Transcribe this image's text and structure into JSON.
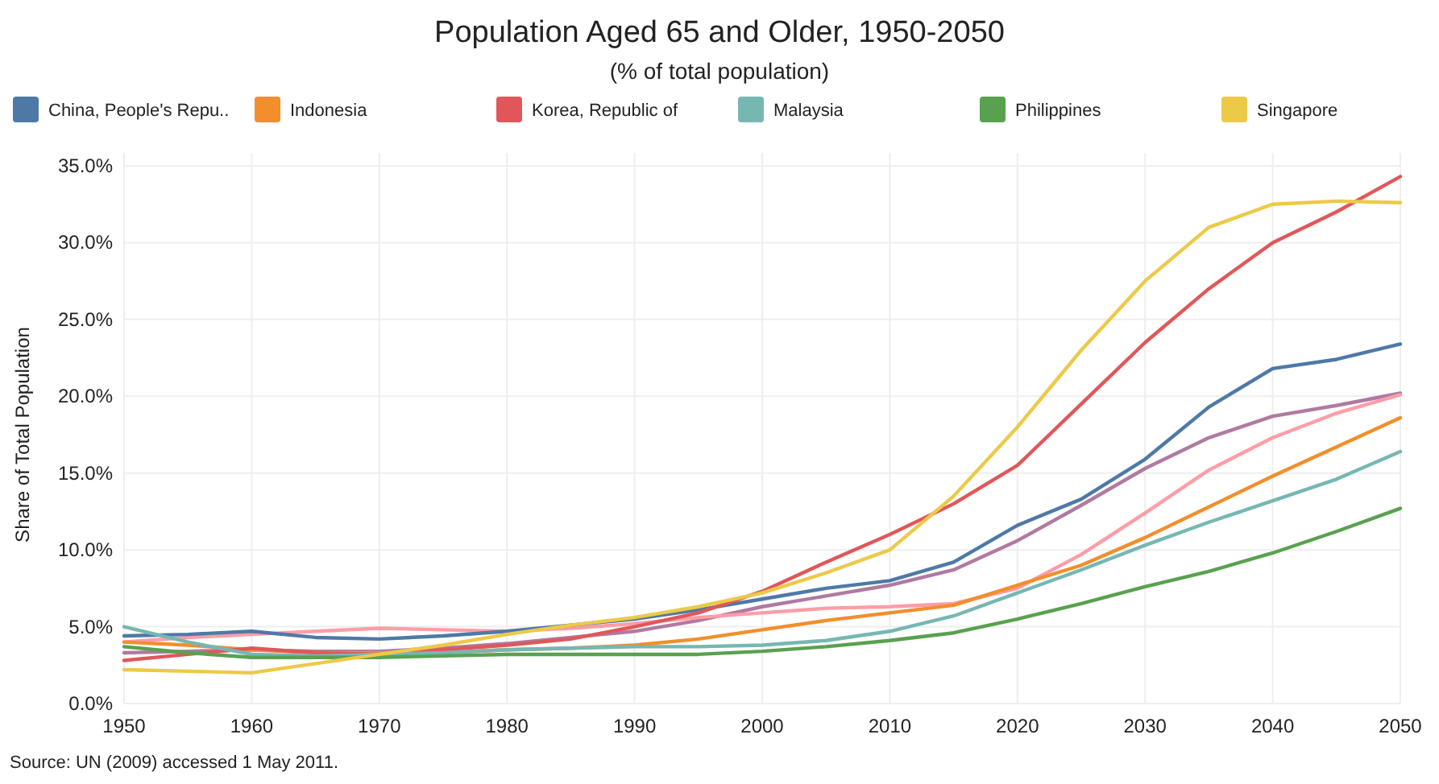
{
  "chart_data": {
    "type": "line",
    "title": "Population Aged 65 and Older, 1950-2050",
    "subtitle": "(% of total population)",
    "ylabel": "Share of Total Population",
    "annotations": [
      "Source: UN (2009) accessed 1 May 2011."
    ],
    "x": [
      1950,
      1955,
      1960,
      1965,
      1970,
      1975,
      1980,
      1985,
      1990,
      1995,
      2000,
      2005,
      2010,
      2015,
      2020,
      2025,
      2030,
      2035,
      2040,
      2045,
      2050
    ],
    "xlim": [
      1950,
      2050
    ],
    "xticks": [
      1950,
      1960,
      1970,
      1980,
      1990,
      2000,
      2010,
      2020,
      2030,
      2040,
      2050
    ],
    "ylim": [
      0,
      35
    ],
    "yticks": [
      {
        "value": 0,
        "label": "0.0%"
      },
      {
        "value": 5,
        "label": "5.0%"
      },
      {
        "value": 10,
        "label": "10.0%"
      },
      {
        "value": 15,
        "label": "15.0%"
      },
      {
        "value": 20,
        "label": "20.0%"
      },
      {
        "value": 25,
        "label": "25.0%"
      },
      {
        "value": 30,
        "label": "30.0%"
      },
      {
        "value": 35,
        "label": "35.0%"
      }
    ],
    "grid": true,
    "legend": "top",
    "marker": "none",
    "line_style": "solid",
    "series": [
      {
        "color": "#b07aa1",
        "values": [
          3.3,
          3.4,
          3.5,
          3.4,
          3.4,
          3.6,
          3.9,
          4.3,
          4.7,
          5.4,
          6.3,
          7.0,
          7.7,
          8.7,
          10.6,
          12.9,
          15.3,
          17.3,
          18.7,
          19.4,
          20.2
        ]
      },
      {
        "color": "#ff9da7",
        "values": [
          4.0,
          4.3,
          4.5,
          4.7,
          4.9,
          4.8,
          4.7,
          4.9,
          5.2,
          5.6,
          5.9,
          6.2,
          6.3,
          6.5,
          7.5,
          9.7,
          12.4,
          15.2,
          17.3,
          18.9,
          20.1
        ]
      },
      {
        "name": "China, People's Repu..",
        "color": "#4e79a7",
        "values": [
          4.4,
          4.5,
          4.7,
          4.3,
          4.2,
          4.4,
          4.7,
          5.1,
          5.5,
          6.1,
          6.8,
          7.5,
          8.0,
          9.2,
          11.6,
          13.3,
          15.9,
          19.3,
          21.8,
          22.4,
          23.4
        ]
      },
      {
        "name": "Indonesia",
        "color": "#f28e2b",
        "values": [
          4.0,
          3.8,
          3.5,
          3.3,
          3.3,
          3.3,
          3.5,
          3.6,
          3.8,
          4.2,
          4.8,
          5.4,
          5.9,
          6.4,
          7.7,
          9.0,
          10.8,
          12.8,
          14.8,
          16.7,
          18.6
        ]
      },
      {
        "name": "Korea, Republic of",
        "color": "#e15759",
        "values": [
          2.8,
          3.2,
          3.6,
          3.3,
          3.2,
          3.5,
          3.8,
          4.2,
          5.0,
          5.9,
          7.3,
          9.2,
          11.0,
          13.0,
          15.5,
          19.5,
          23.5,
          27.0,
          30.0,
          32.0,
          34.3
        ]
      },
      {
        "name": "Malaysia",
        "color": "#76b7b2",
        "values": [
          5.0,
          4.0,
          3.2,
          3.1,
          3.2,
          3.3,
          3.5,
          3.6,
          3.7,
          3.7,
          3.8,
          4.1,
          4.7,
          5.7,
          7.2,
          8.7,
          10.3,
          11.8,
          13.2,
          14.6,
          16.4
        ]
      },
      {
        "name": "Philippines",
        "color": "#59a14f",
        "values": [
          3.7,
          3.3,
          3.0,
          3.0,
          3.0,
          3.1,
          3.2,
          3.2,
          3.2,
          3.2,
          3.4,
          3.7,
          4.1,
          4.6,
          5.5,
          6.5,
          7.6,
          8.6,
          9.8,
          11.2,
          12.7
        ]
      },
      {
        "name": "Singapore",
        "color": "#edc948",
        "values": [
          2.2,
          2.1,
          2.0,
          2.6,
          3.2,
          3.8,
          4.5,
          5.1,
          5.6,
          6.3,
          7.2,
          8.5,
          10.0,
          13.5,
          18.0,
          23.0,
          27.5,
          31.0,
          32.5,
          32.7,
          32.6
        ]
      }
    ]
  }
}
